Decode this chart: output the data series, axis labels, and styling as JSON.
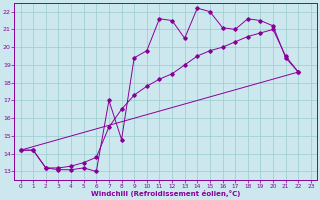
{
  "xlabel": "Windchill (Refroidissement éolien,°C)",
  "xlim": [
    -0.5,
    23.5
  ],
  "ylim": [
    12.5,
    22.5
  ],
  "yticks": [
    13,
    14,
    15,
    16,
    17,
    18,
    19,
    20,
    21,
    22
  ],
  "xticks": [
    0,
    1,
    2,
    3,
    4,
    5,
    6,
    7,
    8,
    9,
    10,
    11,
    12,
    13,
    14,
    15,
    16,
    17,
    18,
    19,
    20,
    21,
    22,
    23
  ],
  "bg_color": "#cce8ee",
  "line_color": "#880099",
  "grid_color": "#99cccc",
  "series1": [
    [
      0,
      14.2
    ],
    [
      1,
      14.2
    ],
    [
      2,
      13.2
    ],
    [
      3,
      13.1
    ],
    [
      4,
      13.1
    ],
    [
      5,
      13.2
    ],
    [
      6,
      13.0
    ],
    [
      7,
      17.0
    ],
    [
      8,
      14.8
    ],
    [
      9,
      19.4
    ],
    [
      10,
      19.8
    ],
    [
      11,
      21.6
    ],
    [
      12,
      21.5
    ],
    [
      13,
      20.5
    ],
    [
      14,
      22.2
    ],
    [
      15,
      22.0
    ],
    [
      16,
      21.1
    ],
    [
      17,
      21.0
    ],
    [
      18,
      21.6
    ],
    [
      19,
      21.5
    ],
    [
      20,
      21.2
    ],
    [
      21,
      19.4
    ],
    [
      22,
      18.6
    ]
  ],
  "series2": [
    [
      0,
      14.2
    ],
    [
      1,
      14.2
    ],
    [
      2,
      13.2
    ],
    [
      3,
      13.2
    ],
    [
      4,
      13.3
    ],
    [
      5,
      13.5
    ],
    [
      6,
      13.8
    ],
    [
      7,
      15.5
    ],
    [
      8,
      16.5
    ],
    [
      9,
      17.3
    ],
    [
      10,
      17.8
    ],
    [
      11,
      18.2
    ],
    [
      12,
      18.5
    ],
    [
      13,
      19.0
    ],
    [
      14,
      19.5
    ],
    [
      15,
      19.8
    ],
    [
      16,
      20.0
    ],
    [
      17,
      20.3
    ],
    [
      18,
      20.6
    ],
    [
      19,
      20.8
    ],
    [
      20,
      21.0
    ],
    [
      21,
      19.5
    ],
    [
      22,
      18.6
    ]
  ],
  "series3": [
    [
      0,
      14.2
    ],
    [
      22,
      18.6
    ]
  ]
}
